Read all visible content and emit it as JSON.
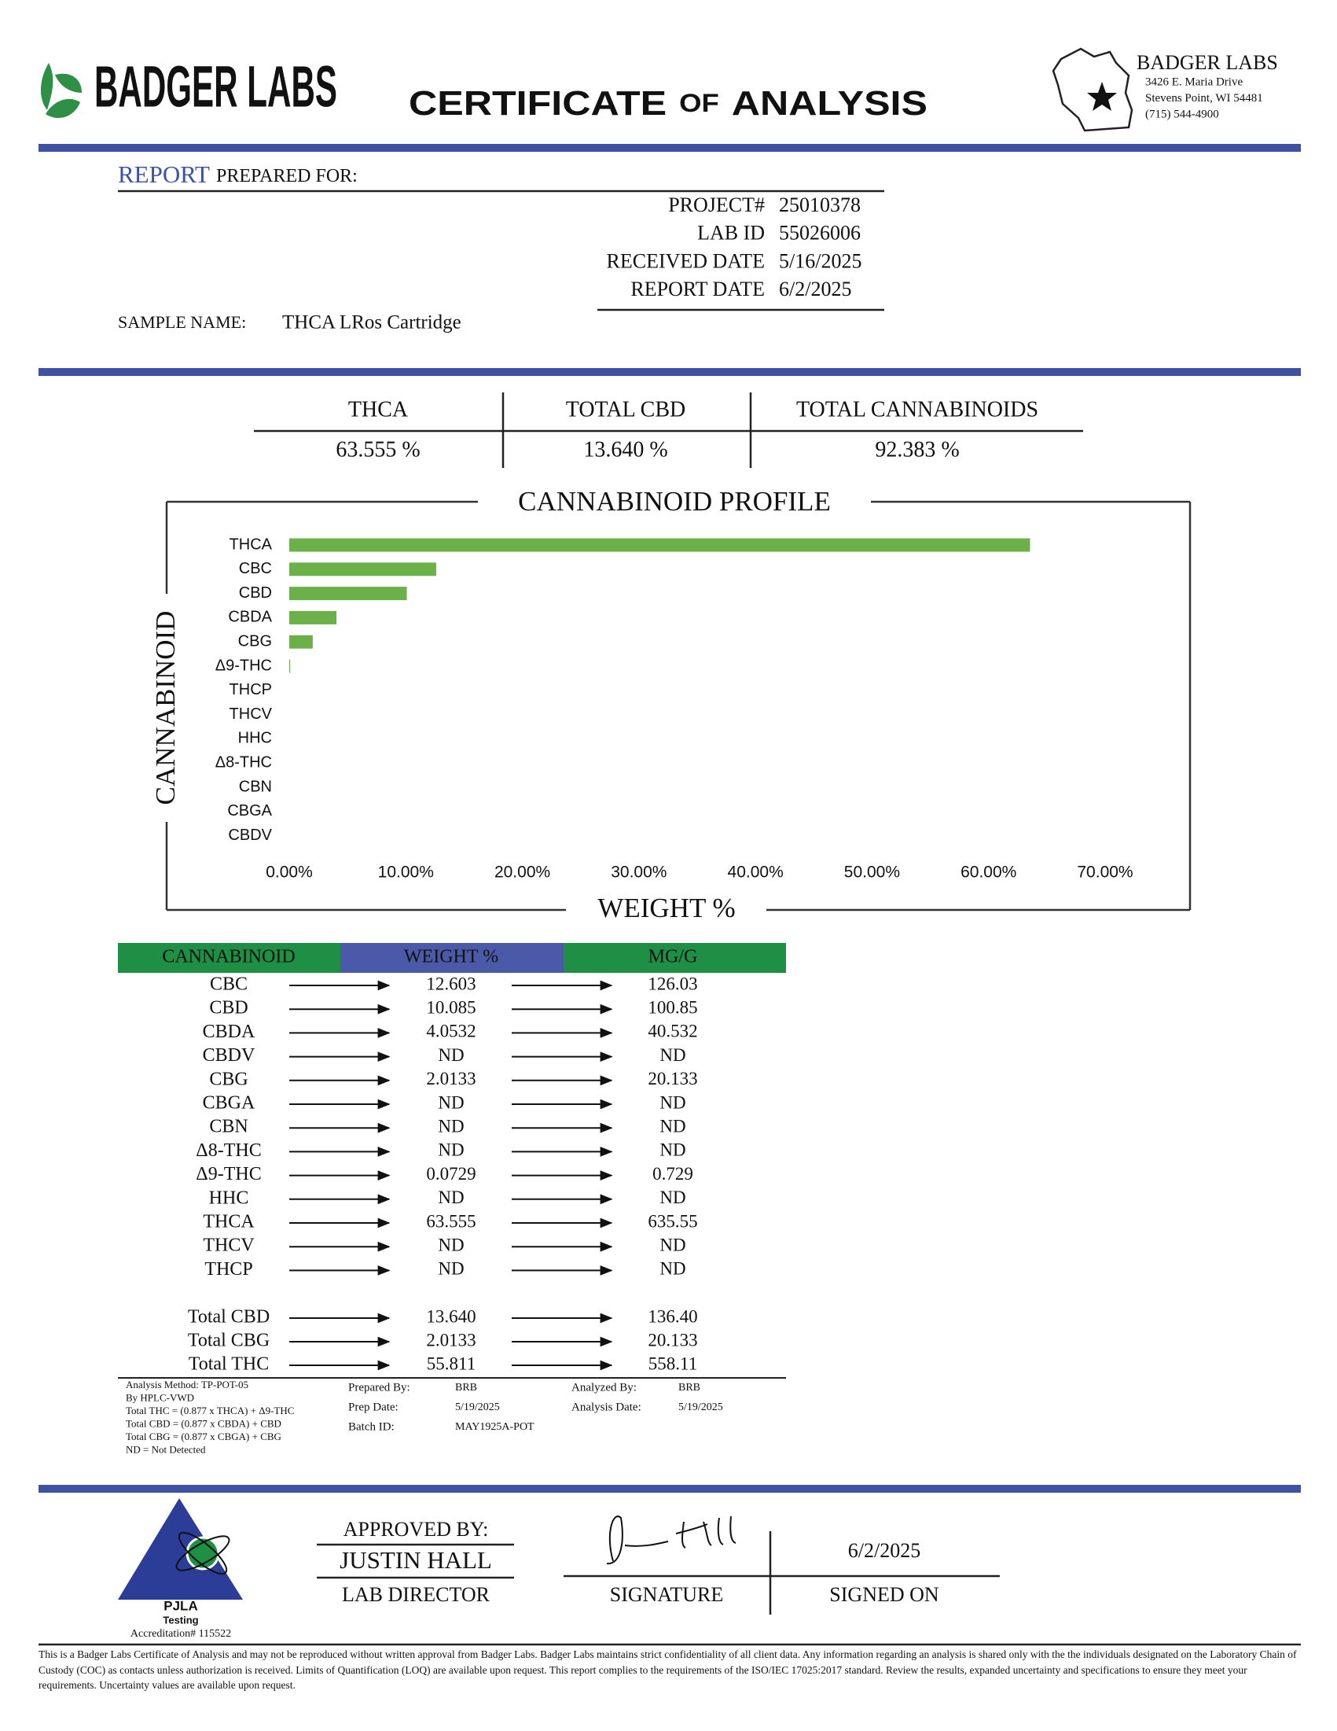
{
  "header": {
    "logo": "BADGER LABS",
    "title_parts": [
      "CERTIFICATE",
      "OF",
      "ANALYSIS"
    ]
  },
  "lab": {
    "name": "BADGER LABS",
    "address": [
      "3426 E. Maria Drive",
      "Stevens Point, WI 54481",
      "(715) 544-4900"
    ]
  },
  "report": {
    "heading": "REPORT",
    "heading_rest": "PREPARED FOR:",
    "fields": [
      {
        "label": "PROJECT#",
        "value": "25010378"
      },
      {
        "label": "LAB ID",
        "value": "55026006"
      },
      {
        "label": "RECEIVED DATE",
        "value": "5/16/2025"
      },
      {
        "label": "REPORT DATE",
        "value": "6/2/2025"
      }
    ],
    "sample_label": "SAMPLE NAME:",
    "sample_name": "THCA LRos Cartridge"
  },
  "summary": {
    "headers": [
      "THCA",
      "TOTAL CBD",
      "TOTAL CANNABINOIDS"
    ],
    "values": [
      "63.555 %",
      "13.640 %",
      "92.383 %"
    ]
  },
  "chart_data": {
    "type": "hbar",
    "title": "CANNABINOID PROFILE",
    "x_label": "WEIGHT %",
    "y_label": "CANNABINOID",
    "categories": [
      "THCA",
      "CBC",
      "CBD",
      "CBDA",
      "CBG",
      "Δ9-THC",
      "THCP",
      "THCV",
      "HHC",
      "Δ8-THC",
      "CBN",
      "CBGA",
      "CBDV"
    ],
    "values": [
      63.555,
      12.603,
      10.085,
      4.0532,
      2.0133,
      0.0729,
      null,
      null,
      null,
      null,
      null,
      null,
      null
    ],
    "color": "#6cb04a",
    "xlim": [
      0,
      70
    ],
    "xticks": [
      {
        "value": 0,
        "label": "0.00%"
      },
      {
        "value": 10,
        "label": "10.00%"
      },
      {
        "value": 20,
        "label": "20.00%"
      },
      {
        "value": 30,
        "label": "30.00%"
      },
      {
        "value": 40,
        "label": "40.00%"
      },
      {
        "value": 50,
        "label": "50.00%"
      },
      {
        "value": 60,
        "label": "60.00%"
      },
      {
        "value": 70,
        "label": "70.00%"
      }
    ],
    "grid": false
  },
  "results": {
    "headers": [
      "CANNABINOID",
      "WEIGHT %",
      "MG/G"
    ],
    "rows": [
      [
        "CBC",
        "12.603",
        "126.03"
      ],
      [
        "CBD",
        "10.085",
        "100.85"
      ],
      [
        "CBDA",
        "4.0532",
        "40.532"
      ],
      [
        "CBDV",
        "ND",
        "ND"
      ],
      [
        "CBG",
        "2.0133",
        "20.133"
      ],
      [
        "CBGA",
        "ND",
        "ND"
      ],
      [
        "CBN",
        "ND",
        "ND"
      ],
      [
        "Δ8-THC",
        "ND",
        "ND"
      ],
      [
        "Δ9-THC",
        "0.0729",
        "0.729"
      ],
      [
        "HHC",
        "ND",
        "ND"
      ],
      [
        "THCA",
        "63.555",
        "635.55"
      ],
      [
        "THCV",
        "ND",
        "ND"
      ],
      [
        "THCP",
        "ND",
        "ND"
      ]
    ],
    "totals": [
      [
        "Total CBD",
        "13.640",
        "136.40"
      ],
      [
        "Total CBG",
        "2.0133",
        "20.133"
      ],
      [
        "Total THC",
        "55.811",
        "558.11"
      ]
    ]
  },
  "notes": {
    "method": [
      "Analysis Method: TP-POT-05",
      "By HPLC-VWD",
      "Total THC = (0.877 x  THCA) + Δ9-THC",
      "Total CBD = (0.877 x  CBDA) + CBD",
      "Total CBG = (0.877 x  CBGA) + CBG",
      "ND = Not Detected"
    ],
    "prepared": [
      {
        "label": "Prepared By:",
        "value": "BRB"
      },
      {
        "label": "Prep Date:",
        "value": "5/19/2025"
      },
      {
        "label": "Batch ID:",
        "value": "MAY1925A-POT"
      }
    ],
    "analyzed": [
      {
        "label": "Analyzed By:",
        "value": "BRB"
      },
      {
        "label": "Analysis Date:",
        "value": "5/19/2025"
      }
    ]
  },
  "approval": {
    "pjla": [
      "PJLA",
      "Testing",
      "Accreditation# 115522"
    ],
    "approved_by": "APPROVED BY:",
    "name": "JUSTIN HALL",
    "role": "LAB DIRECTOR",
    "signature_label": "SIGNATURE",
    "signed_date": "6/2/2025",
    "signed_label": "SIGNED ON"
  },
  "disclaimer": "This is a Badger Labs Certificate of Analysis and may not be reproduced without written approval from Badger Labs. Badger Labs maintains strict confidentiality of all client data. Any information regarding an analysis is shared only with the the individuals designated on the Laboratory Chain of Custody (COC) as contacts unless authorization is received. Limits of Quantification (LOQ) are available upon request. This report complies to the requirements of the ISO/IEC 17025:2017 standard.  Review the results, expanded uncertainty and specifications to ensure they meet your requirements. Uncertainty values are available upon request."
}
